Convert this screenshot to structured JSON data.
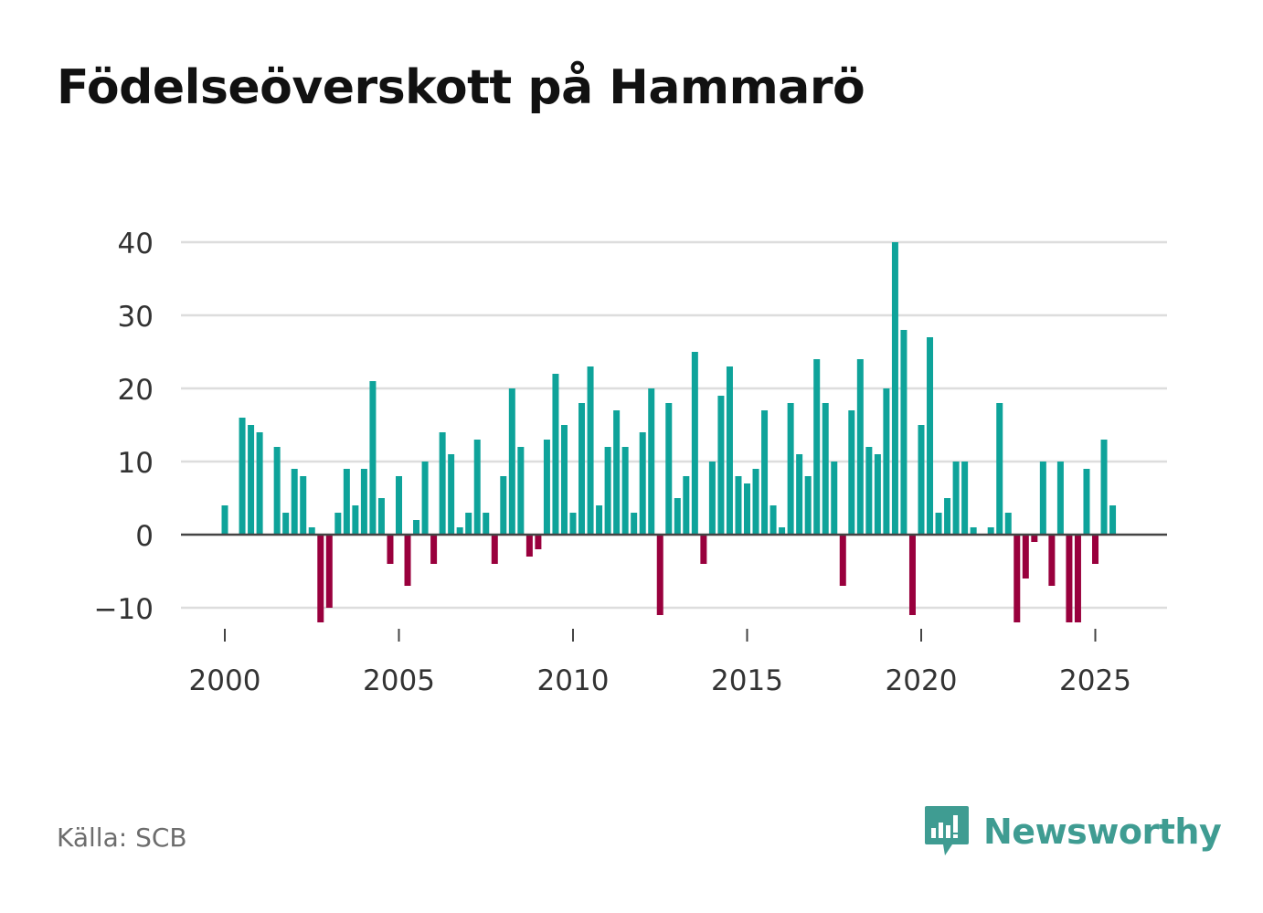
{
  "title": "Födelseöverskott på Hammarö",
  "source": "Källa: SCB",
  "brand": {
    "name": "Newsworthy",
    "icon": "newsworthy-logo-icon"
  },
  "colors": {
    "positive": "#0ea39a",
    "negative": "#99003d",
    "grid": "#dddddd",
    "zero": "#444444",
    "text": "#333333",
    "brand": "#3f9c92"
  },
  "chart_data": {
    "type": "bar",
    "title": "Födelseöverskott på Hammarö",
    "xlabel": "",
    "ylabel": "",
    "ylim": [
      -14,
      42
    ],
    "xlim": [
      1999.5,
      2027.0
    ],
    "grid": true,
    "yticks": [
      -10,
      0,
      10,
      20,
      30,
      40
    ],
    "ytick_labels": [
      "−10",
      "0",
      "10",
      "20",
      "30",
      "40"
    ],
    "xticks": [
      2000,
      2005,
      2010,
      2015,
      2020,
      2025
    ],
    "xtick_labels": [
      "2000",
      "2005",
      "2010",
      "2015",
      "2020",
      "2025"
    ],
    "x_start": 2000.0,
    "x_step": 0.25,
    "series": [
      {
        "name": "Födelseöverskott",
        "values": [
          4,
          0,
          16,
          15,
          14,
          0,
          12,
          3,
          9,
          8,
          1,
          -12,
          -10,
          3,
          9,
          4,
          9,
          21,
          5,
          -4,
          8,
          -7,
          2,
          10,
          -4,
          14,
          11,
          1,
          3,
          13,
          3,
          -4,
          8,
          20,
          12,
          -3,
          -2,
          13,
          22,
          15,
          3,
          18,
          23,
          4,
          12,
          17,
          12,
          3,
          14,
          20,
          -11,
          18,
          5,
          8,
          25,
          -4,
          10,
          19,
          23,
          8,
          7,
          9,
          17,
          4,
          1,
          18,
          11,
          8,
          24,
          18,
          10,
          -7,
          17,
          24,
          12,
          11,
          20,
          40,
          28,
          -11,
          15,
          27,
          3,
          5,
          10,
          10,
          1,
          0,
          1,
          18,
          3,
          -12,
          -6,
          -1,
          10,
          -7,
          10,
          -12,
          -12,
          9,
          -4,
          13,
          4
        ]
      }
    ]
  }
}
